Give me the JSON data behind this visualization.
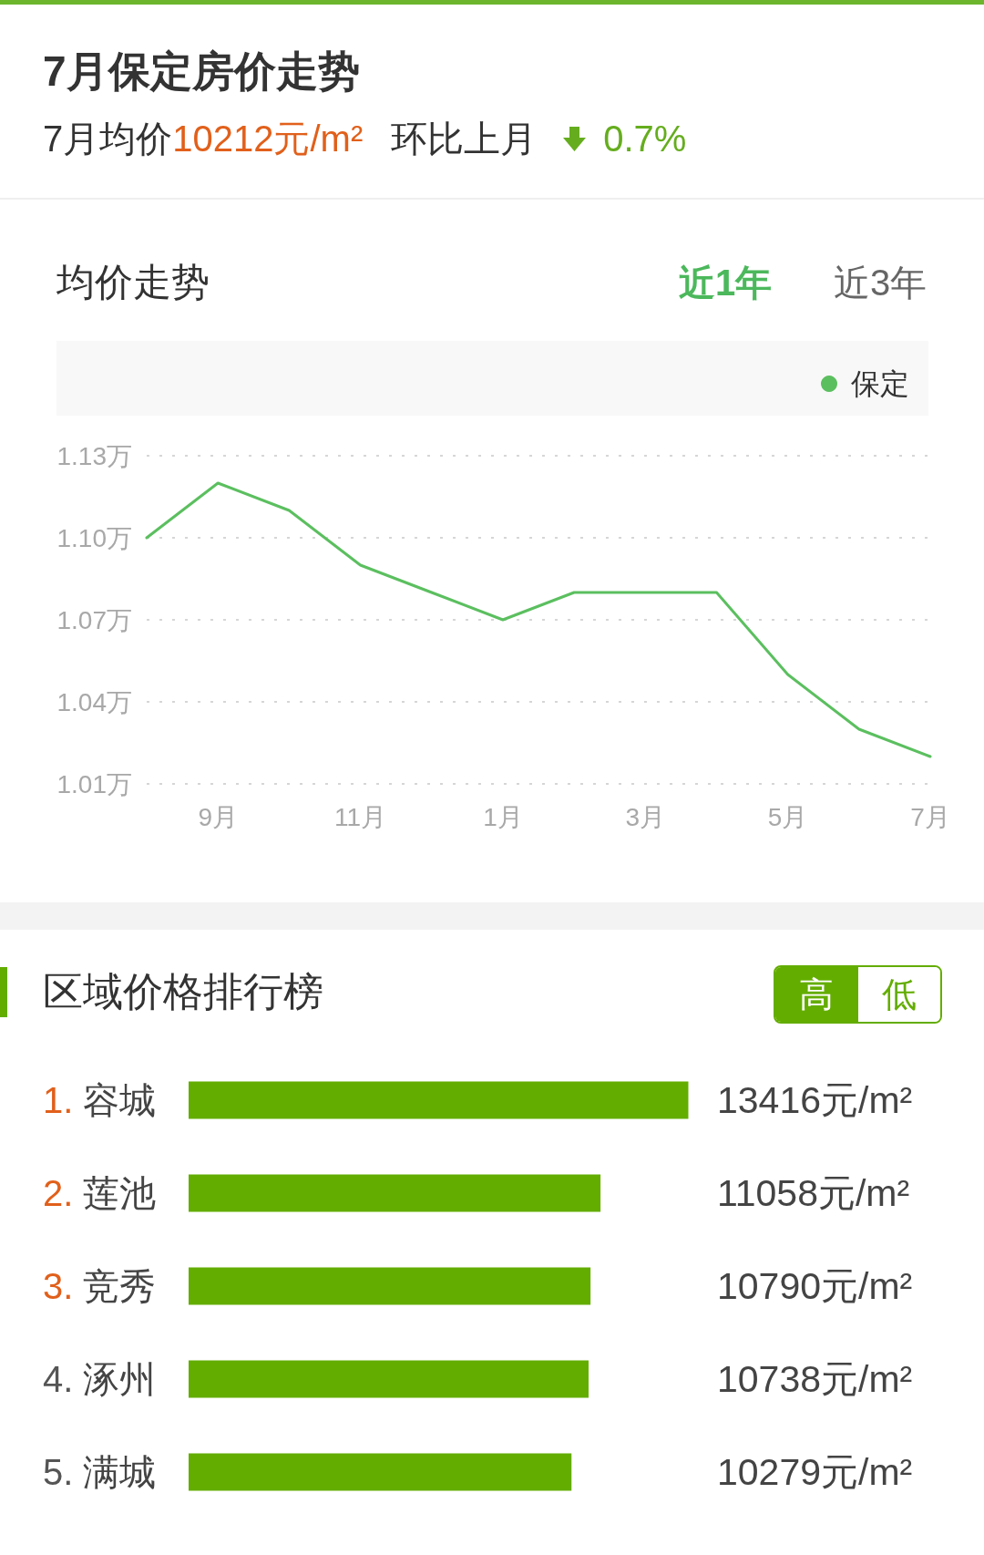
{
  "chart_data": [
    {
      "type": "line",
      "title": "7月保定房价走势",
      "subtitle": "7月均价10212元/m²",
      "annotations": [
        "环比上月",
        "0.7%",
        "均价走势",
        "近1年",
        "近3年"
      ],
      "categories": [
        null,
        "9月",
        null,
        "11月",
        null,
        "1月",
        null,
        "3月",
        null,
        "5月",
        null,
        "7月"
      ],
      "series": [
        {
          "name": "保定",
          "color": "#5bbf5f",
          "values": [
            1.1,
            1.12,
            1.11,
            1.09,
            1.08,
            1.07,
            1.08,
            1.08,
            1.08,
            1.05,
            1.03,
            1.02
          ]
        }
      ],
      "ylim": [
        1.01,
        1.13
      ],
      "yticks": [
        {
          "value": 1.01,
          "label": "1.01万"
        },
        {
          "value": 1.04,
          "label": "1.04万"
        },
        {
          "value": 1.07,
          "label": "1.07万"
        },
        {
          "value": 1.1,
          "label": "1.10万"
        },
        {
          "value": 1.13,
          "label": "1.13万"
        }
      ],
      "grid": "y",
      "legend": "top right",
      "marker": "none",
      "line_style": "solid"
    },
    {
      "type": "bar",
      "title": "区域价格排行榜",
      "annotations": [
        "高",
        "低"
      ],
      "categories": [
        "1. 容城",
        "2. 莲池",
        "3. 竞秀",
        "4. 涿州",
        "5. 满城"
      ],
      "values": [
        13416,
        11058,
        10790,
        10738,
        10279
      ],
      "value_labels": [
        "13416元/m²",
        "11058元/m²",
        "10790元/m²",
        "10738元/m²",
        "10279元/m²"
      ],
      "color": "#63ad00",
      "orientation": "horizontal",
      "tick_labels": "y"
    }
  ]
}
